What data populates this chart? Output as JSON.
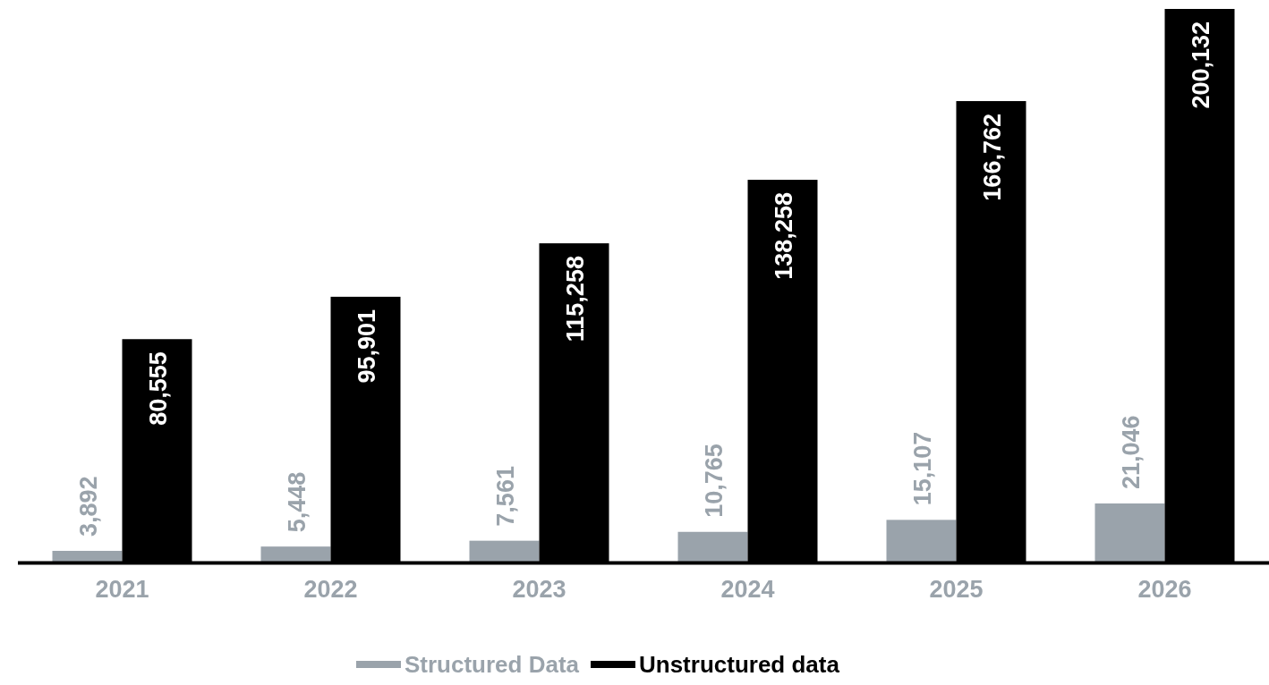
{
  "chart_data": {
    "type": "bar",
    "categories": [
      "2021",
      "2022",
      "2023",
      "2024",
      "2025",
      "2026"
    ],
    "series": [
      {
        "name": "Structured Data",
        "color": "#9aa3ab",
        "values": [
          3892,
          5448,
          7561,
          10765,
          15107,
          21046
        ],
        "value_labels": [
          "3,892",
          "5,448",
          "7,561",
          "10,765",
          "15,107",
          "21,046"
        ]
      },
      {
        "name": "Unstructured data",
        "color": "#000000",
        "values": [
          80555,
          95901,
          115258,
          138258,
          166762,
          200132
        ],
        "value_labels": [
          "80,555",
          "95,901",
          "115,258",
          "138,258",
          "166,762",
          "200,132"
        ]
      }
    ],
    "legend": "bottom"
  }
}
